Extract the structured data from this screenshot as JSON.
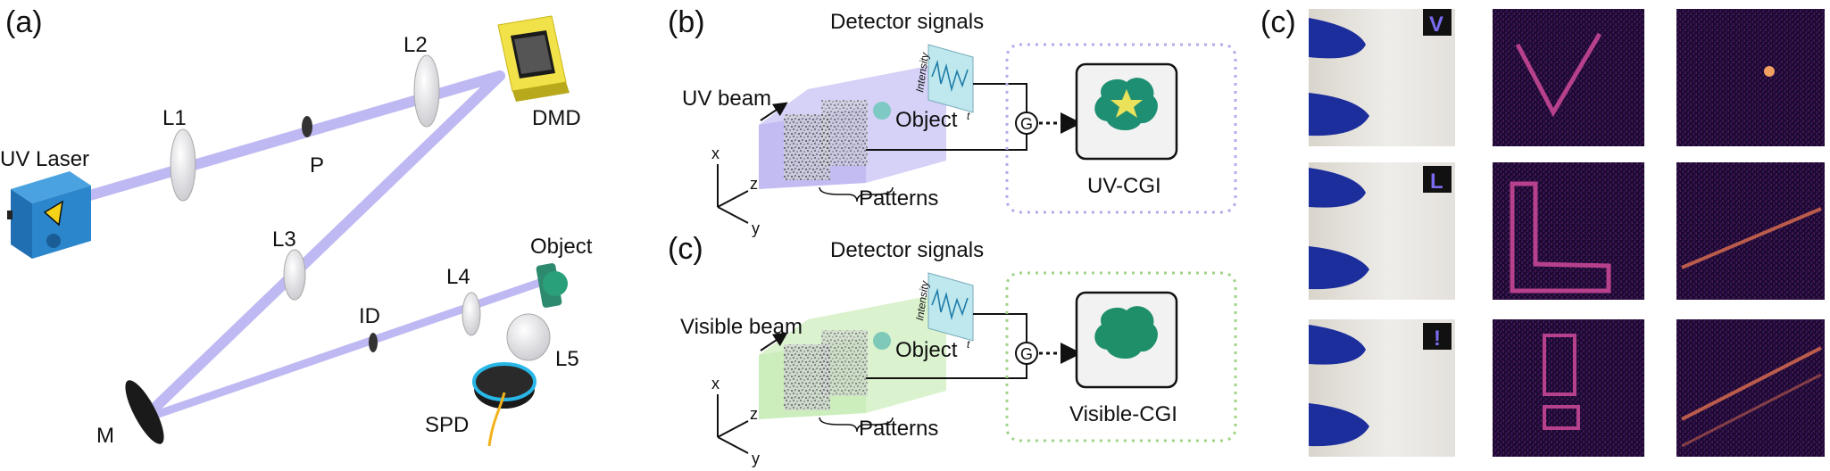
{
  "panel_a": {
    "label": "(a)",
    "components": {
      "laser": "UV Laser",
      "l1": "L1",
      "p": "P",
      "l2": "L2",
      "dmd": "DMD",
      "l3": "L3",
      "m": "M",
      "id": "ID",
      "l4": "L4",
      "object": "Object",
      "l5": "L5",
      "spd": "SPD"
    }
  },
  "panel_b": {
    "label": "(b)",
    "detector_title": "Detector signals",
    "beam": "UV beam",
    "object": "Object",
    "patterns": "Patterns",
    "axis_intensity": "Intensity",
    "axis_t": "t",
    "axes": {
      "x": "x",
      "y": "y",
      "z": "z"
    },
    "g_symbol": "G",
    "result": "UV-CGI",
    "box_color": "#b9a8ee",
    "beam_color": "#b7b2f2"
  },
  "panel_c_mid": {
    "label": "(c)",
    "detector_title": "Detector signals",
    "beam": "Visible beam",
    "object": "Object",
    "patterns": "Patterns",
    "axis_intensity": "Intensity",
    "axis_t": "t",
    "axes": {
      "x": "x",
      "y": "y",
      "z": "z"
    },
    "g_symbol": "G",
    "result": "Visible-CGI",
    "box_color": "#9fd48a",
    "beam_color": "#cbeebb"
  },
  "panel_c_right": {
    "label": "(c)",
    "rows": [
      {
        "badge": "V"
      },
      {
        "badge": "L"
      },
      {
        "badge": "!"
      }
    ]
  }
}
